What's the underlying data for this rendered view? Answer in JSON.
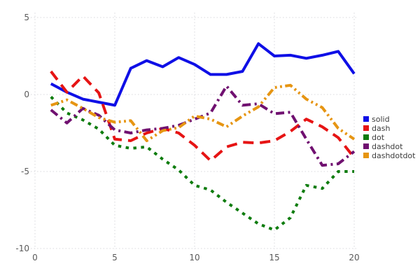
{
  "figure": {
    "background": "#ffffff"
  },
  "axes": {
    "x_tick_labels": [
      "0",
      "5",
      "10",
      "15",
      "20"
    ],
    "y_tick_labels": [
      "5",
      "0",
      "-5",
      "-10"
    ],
    "tick_label_color": "#5a5a5a",
    "grid_color": "#d9dade"
  },
  "legend": {
    "position": "center-right",
    "text_color": "#3c3c3c",
    "items": [
      {
        "label": "solid",
        "color": "#0f0fe6"
      },
      {
        "label": "dash",
        "color": "#e61414"
      },
      {
        "label": "dot",
        "color": "#0e7c0e"
      },
      {
        "label": "dashdot",
        "color": "#701070"
      },
      {
        "label": "dashdotdot",
        "color": "#e69512"
      }
    ]
  },
  "chart_data": {
    "type": "line",
    "title": "",
    "xlabel": "",
    "ylabel": "",
    "xlim": [
      0,
      20
    ],
    "ylim": [
      -10,
      5
    ],
    "x_ticks": [
      0,
      5,
      10,
      15,
      20
    ],
    "y_ticks": [
      5,
      0,
      -5,
      -10
    ],
    "grid": "dotted",
    "legend_position": "center-right",
    "x": [
      1,
      2,
      3,
      4,
      5,
      6,
      7,
      8,
      9,
      10,
      11,
      12,
      13,
      14,
      15,
      16,
      17,
      18,
      19,
      20
    ],
    "series": [
      {
        "name": "solid",
        "color": "#0f0fe6",
        "dash_style": "solid",
        "values": [
          0.7,
          0.15,
          -0.3,
          -0.5,
          -0.7,
          1.7,
          2.2,
          1.8,
          2.4,
          1.95,
          1.3,
          1.3,
          1.5,
          3.3,
          2.5,
          2.55,
          2.35,
          2.55,
          2.8,
          1.35
        ]
      },
      {
        "name": "dash",
        "color": "#e61414",
        "dash_style": "dash",
        "values": [
          1.5,
          0.15,
          1.2,
          0.1,
          -2.9,
          -3.0,
          -2.5,
          -2.2,
          -2.5,
          -3.3,
          -4.3,
          -3.4,
          -3.1,
          -3.15,
          -3.0,
          -2.4,
          -1.6,
          -2.1,
          -2.8,
          -4.1
        ]
      },
      {
        "name": "dot",
        "color": "#0e7c0e",
        "dash_style": "dot",
        "values": [
          -0.15,
          -1.2,
          -1.65,
          -2.25,
          -3.3,
          -3.5,
          -3.4,
          -4.2,
          -4.9,
          -5.9,
          -6.2,
          -7.0,
          -7.7,
          -8.4,
          -8.8,
          -8.0,
          -5.9,
          -6.1,
          -5.0,
          -5.0
        ]
      },
      {
        "name": "dashdot",
        "color": "#701070",
        "dash_style": "dashdot",
        "values": [
          -1.0,
          -1.85,
          -0.9,
          -1.35,
          -2.3,
          -2.5,
          -2.3,
          -2.2,
          -2.0,
          -1.6,
          -1.2,
          0.55,
          -0.7,
          -0.6,
          -1.25,
          -1.15,
          -2.9,
          -4.6,
          -4.5,
          -3.7
        ]
      },
      {
        "name": "dashdotdot",
        "color": "#e69512",
        "dash_style": "dashdotdot",
        "values": [
          -0.7,
          -0.35,
          -0.9,
          -1.5,
          -1.8,
          -1.7,
          -3.0,
          -2.35,
          -2.15,
          -1.4,
          -1.6,
          -2.1,
          -1.4,
          -0.8,
          0.45,
          0.6,
          -0.3,
          -0.85,
          -2.2,
          -2.9
        ]
      }
    ]
  }
}
